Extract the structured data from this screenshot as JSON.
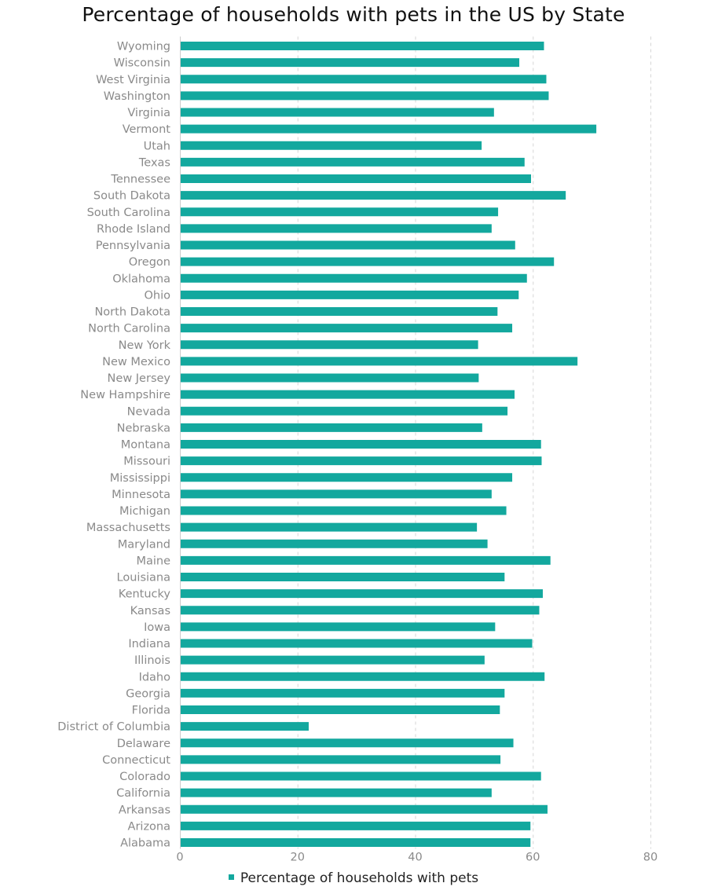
{
  "chart_data": {
    "type": "bar",
    "orientation": "horizontal",
    "title": "Percentage of households with pets in the US by State",
    "xlabel": "",
    "ylabel": "",
    "xlim": [
      0,
      80
    ],
    "x_ticks": [
      "0",
      "20",
      "40",
      "60",
      "80"
    ],
    "grid": "vertical-dashed",
    "legend_position": "bottom",
    "bar_color": "#13a89e",
    "categories": [
      "Wyoming",
      "Wisconsin",
      "West Virginia",
      "Washington",
      "Virginia",
      "Vermont",
      "Utah",
      "Texas",
      "Tennessee",
      "South Dakota",
      "South Carolina",
      "Rhode Island",
      "Pennsylvania",
      "Oregon",
      "Oklahoma",
      "Ohio",
      "North Dakota",
      "North Carolina",
      "New York",
      "New Mexico",
      "New Jersey",
      "New Hampshire",
      "Nevada",
      "Nebraska",
      "Montana",
      "Missouri",
      "Mississippi",
      "Minnesota",
      "Michigan",
      "Massachusetts",
      "Maryland",
      "Maine",
      "Louisiana",
      "Kentucky",
      "Kansas",
      "Iowa",
      "Indiana",
      "Illinois",
      "Idaho",
      "Georgia",
      "Florida",
      "District of Columbia",
      "Delaware",
      "Connecticut",
      "Colorado",
      "California",
      "Arkansas",
      "Arizona",
      "Alabama"
    ],
    "series": [
      {
        "name": "Percentage of households with pets",
        "values": [
          61.9,
          57.7,
          62.3,
          62.7,
          53.4,
          70.8,
          51.3,
          58.6,
          59.7,
          65.6,
          54.1,
          53.0,
          57.0,
          63.6,
          59.0,
          57.6,
          54.0,
          56.5,
          50.7,
          67.6,
          50.8,
          56.9,
          55.7,
          51.4,
          61.4,
          61.5,
          56.5,
          53.0,
          55.5,
          50.5,
          52.3,
          63.0,
          55.2,
          61.7,
          61.1,
          53.6,
          59.9,
          51.8,
          62.0,
          55.2,
          54.4,
          21.9,
          56.7,
          54.5,
          61.4,
          53.0,
          62.5,
          59.6,
          59.6
        ]
      }
    ]
  }
}
